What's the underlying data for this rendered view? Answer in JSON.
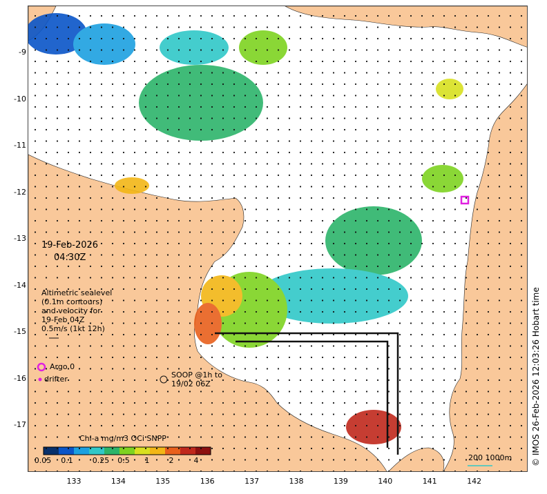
{
  "map": {
    "date": "19-Feb-2026",
    "time": "04:30Z",
    "altimetry_lines": [
      "Altimetric sealevel",
      "(0.1m contours)",
      "and velocity for",
      "19-Feb 04Z",
      "0.5m/s (1kt 12h)"
    ],
    "argo_label": "Argo 0",
    "drifter_label": "drifter",
    "soop_lines": [
      "SOOP @1h to",
      "19/02 06Z"
    ],
    "scale_label": "200  1000m",
    "credit": "© IMOS 26-Feb-2026 12:03:26 Hobart time",
    "colorbar_title": "Chl-a mg/m3 OCi SNPP",
    "colorbar_ticks": [
      "0.05",
      "0.1",
      "0.25",
      "0.5",
      "1",
      "2",
      "4"
    ],
    "colorbar_colors": [
      "#08306b",
      "#0a55c8",
      "#1ca0e0",
      "#30c8c8",
      "#2cb46a",
      "#7ed321",
      "#d8e020",
      "#f2b616",
      "#e8601c",
      "#c0281c",
      "#8c1010"
    ],
    "x_ticks": [
      "133",
      "134",
      "135",
      "136",
      "137",
      "138",
      "139",
      "140",
      "141",
      "142"
    ],
    "y_ticks": [
      "-9",
      "-10",
      "-11",
      "-12",
      "-13",
      "-14",
      "-15",
      "-16",
      "-17"
    ],
    "colors": {
      "land": "#f9c89a",
      "sea": "#ffffff",
      "argo": "#e020e0"
    }
  }
}
